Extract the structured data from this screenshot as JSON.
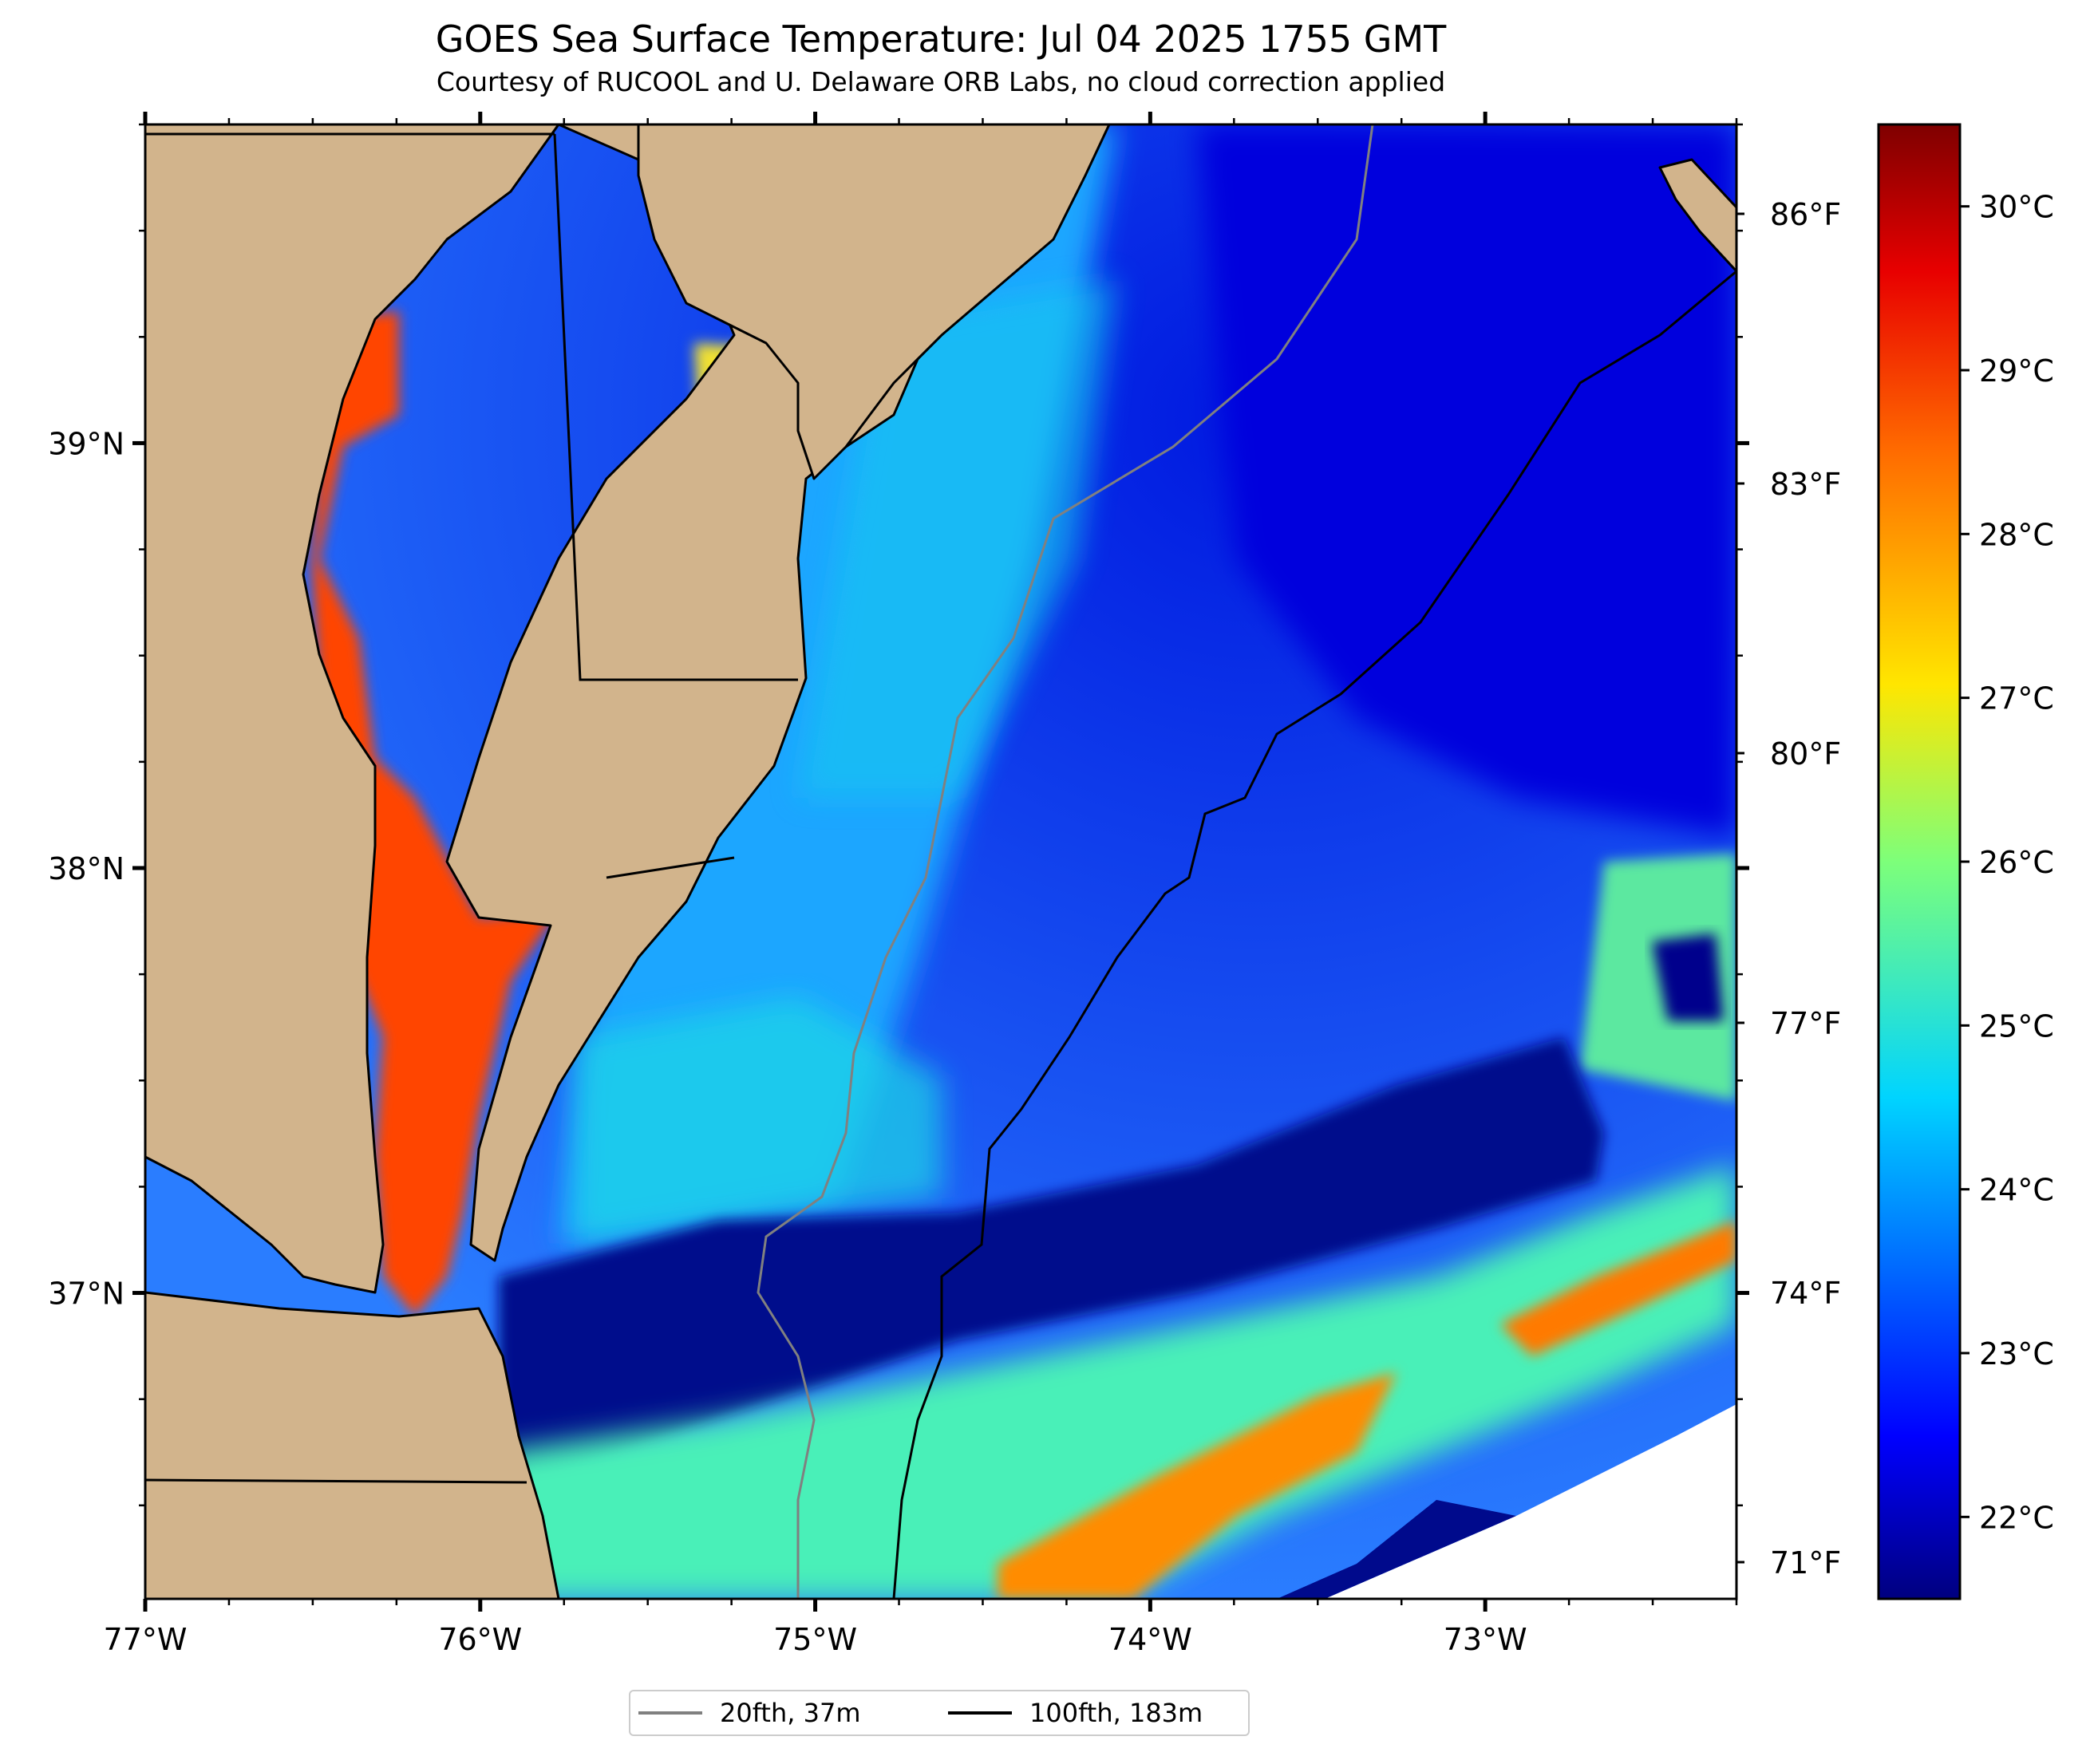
{
  "title": "GOES Sea Surface Temperature: Jul 04 2025 1755 GMT",
  "subtitle": "Courtesy of RUCOOL and U. Delaware ORB Labs, no cloud correction applied",
  "map": {
    "lon_range": [
      -77.0,
      -72.25
    ],
    "lat_range": [
      36.28,
      39.75
    ],
    "x_ticks": [
      {
        "value": -77,
        "label": "77°W"
      },
      {
        "value": -76,
        "label": "76°W"
      },
      {
        "value": -75,
        "label": "75°W"
      },
      {
        "value": -74,
        "label": "74°W"
      },
      {
        "value": -73,
        "label": "73°W"
      }
    ],
    "y_ticks": [
      {
        "value": 39,
        "label": "39°N"
      },
      {
        "value": 38,
        "label": "38°N"
      },
      {
        "value": 37,
        "label": "37°N"
      }
    ],
    "colors": {
      "land": "#d2b48c",
      "coastline": "#000000",
      "warm_water": "#0022ff",
      "cold_upwelling": "#000a8c"
    }
  },
  "fahrenheit_axis": {
    "labels": [
      "86°F",
      "83°F",
      "80°F",
      "77°F",
      "74°F",
      "71°F"
    ]
  },
  "colorbar": {
    "min_c": 21.5,
    "max_c": 30.5,
    "labels": [
      "30°C",
      "29°C",
      "28°C",
      "27°C",
      "26°C",
      "25°C",
      "24°C",
      "23°C",
      "22°C"
    ],
    "colormap": "jet"
  },
  "legend": {
    "items": [
      {
        "label": "20fth, 37m",
        "color": "#808080"
      },
      {
        "label": "100fth, 183m",
        "color": "#000000"
      }
    ]
  }
}
